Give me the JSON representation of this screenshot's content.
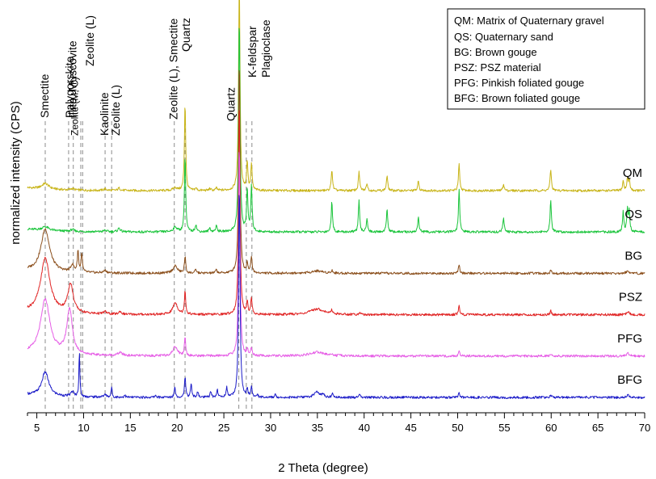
{
  "chart_data": {
    "type": "line",
    "title": "",
    "xlabel": "2 Theta (degree)",
    "ylabel": "normalized intensity (CPS)",
    "xlim": [
      4,
      70
    ],
    "x_ticks": [
      5,
      10,
      15,
      20,
      25,
      30,
      35,
      40,
      45,
      50,
      55,
      60,
      65,
      70
    ],
    "grid": false,
    "legend_position": "top-right",
    "legend": [
      "QM: Matrix of Quaternary gravel",
      "QS: Quaternary sand",
      "BG: Brown gouge",
      "PSZ: PSZ material",
      "PFG: Pinkish foliated gouge",
      "BFG: Brown foliated gouge"
    ],
    "peak_markers": [
      {
        "x": 5.9,
        "label": "Smectite"
      },
      {
        "x": 8.4,
        "label": "Palygorskite"
      },
      {
        "x": 8.9,
        "label": "Illite, Muscovite"
      },
      {
        "x": 9.7,
        "label": "Zeolite (L)"
      },
      {
        "x": 9.9,
        "label": "Zeolite (M, C)"
      },
      {
        "x": 12.3,
        "label": "Kaolinite"
      },
      {
        "x": 13.0,
        "label": "Zeolite (L)"
      },
      {
        "x": 19.7,
        "label": "Zeolite (L), Smectite"
      },
      {
        "x": 20.85,
        "label": "Quartz"
      },
      {
        "x": 26.6,
        "label": "Quartz"
      },
      {
        "x": 27.4,
        "label": "K-feldspar"
      },
      {
        "x": 28.0,
        "label": "Plagioclase"
      }
    ],
    "series": [
      {
        "name": "QM",
        "label": "QM",
        "color": "#c8b418",
        "baseline": 1.0,
        "peaks": [
          [
            5.9,
            0.12,
            0.45
          ],
          [
            8.8,
            0.03,
            0.2
          ],
          [
            12.3,
            0.03,
            0.2
          ],
          [
            13.8,
            0.05,
            0.15
          ],
          [
            19.8,
            0.06,
            0.25
          ],
          [
            20.85,
            1.85,
            0.08
          ],
          [
            22.0,
            0.05,
            0.1
          ],
          [
            23.5,
            0.04,
            0.1
          ],
          [
            24.2,
            0.05,
            0.1
          ],
          [
            26.65,
            4.5,
            0.09
          ],
          [
            27.5,
            0.6,
            0.08
          ],
          [
            27.95,
            0.55,
            0.08
          ],
          [
            36.55,
            0.45,
            0.08
          ],
          [
            39.45,
            0.4,
            0.08
          ],
          [
            40.3,
            0.16,
            0.08
          ],
          [
            42.45,
            0.32,
            0.08
          ],
          [
            45.8,
            0.2,
            0.08
          ],
          [
            50.15,
            0.55,
            0.08
          ],
          [
            54.9,
            0.14,
            0.08
          ],
          [
            59.95,
            0.45,
            0.08
          ],
          [
            67.7,
            0.2,
            0.08
          ],
          [
            68.15,
            0.24,
            0.08
          ],
          [
            68.35,
            0.24,
            0.08
          ]
        ]
      },
      {
        "name": "QS",
        "label": "QS",
        "color": "#19c43a",
        "baseline": 0.8,
        "peaks": [
          [
            5.9,
            0.08,
            0.45
          ],
          [
            8.8,
            0.04,
            0.2
          ],
          [
            12.3,
            0.03,
            0.2
          ],
          [
            13.8,
            0.08,
            0.15
          ],
          [
            19.8,
            0.1,
            0.25
          ],
          [
            20.85,
            1.6,
            0.08
          ],
          [
            22.0,
            0.15,
            0.1
          ],
          [
            23.5,
            0.08,
            0.1
          ],
          [
            24.2,
            0.12,
            0.1
          ],
          [
            26.65,
            4.5,
            0.09
          ],
          [
            27.5,
            0.9,
            0.08
          ],
          [
            27.95,
            0.95,
            0.08
          ],
          [
            36.55,
            0.65,
            0.08
          ],
          [
            39.45,
            0.65,
            0.08
          ],
          [
            40.3,
            0.3,
            0.08
          ],
          [
            42.45,
            0.5,
            0.08
          ],
          [
            45.8,
            0.32,
            0.08
          ],
          [
            50.15,
            0.9,
            0.08
          ],
          [
            54.9,
            0.3,
            0.08
          ],
          [
            59.95,
            0.65,
            0.08
          ],
          [
            67.7,
            0.42,
            0.08
          ],
          [
            68.15,
            0.46,
            0.08
          ],
          [
            68.35,
            0.42,
            0.08
          ]
        ]
      },
      {
        "name": "BG",
        "label": "BG",
        "color": "#8b4f1c",
        "baseline": 0.6,
        "peaks": [
          [
            5.9,
            0.9,
            0.55
          ],
          [
            8.8,
            0.15,
            0.2
          ],
          [
            9.4,
            0.45,
            0.08
          ],
          [
            9.8,
            0.4,
            0.08
          ],
          [
            12.3,
            0.05,
            0.2
          ],
          [
            19.8,
            0.15,
            0.3
          ],
          [
            20.85,
            0.35,
            0.08
          ],
          [
            22.0,
            0.07,
            0.1
          ],
          [
            24.2,
            0.07,
            0.1
          ],
          [
            26.65,
            4.5,
            0.09
          ],
          [
            27.5,
            0.22,
            0.08
          ],
          [
            27.95,
            0.35,
            0.08
          ],
          [
            35.0,
            0.05,
            0.8
          ],
          [
            36.55,
            0.06,
            0.08
          ],
          [
            50.15,
            0.18,
            0.08
          ],
          [
            59.95,
            0.07,
            0.08
          ],
          [
            68.2,
            0.06,
            0.15
          ]
        ]
      },
      {
        "name": "PSZ",
        "label": "PSZ",
        "color": "#e02424",
        "baseline": 0.4,
        "peaks": [
          [
            5.9,
            1.15,
            0.6
          ],
          [
            8.6,
            0.6,
            0.35
          ],
          [
            12.3,
            0.05,
            0.2
          ],
          [
            13.9,
            0.06,
            0.15
          ],
          [
            19.8,
            0.25,
            0.3
          ],
          [
            20.85,
            0.5,
            0.08
          ],
          [
            26.65,
            4.5,
            0.09
          ],
          [
            27.5,
            0.28,
            0.08
          ],
          [
            27.95,
            0.35,
            0.08
          ],
          [
            35.0,
            0.12,
            0.9
          ],
          [
            36.55,
            0.08,
            0.08
          ],
          [
            39.5,
            0.05,
            0.08
          ],
          [
            50.15,
            0.2,
            0.08
          ],
          [
            59.95,
            0.08,
            0.08
          ],
          [
            68.2,
            0.07,
            0.15
          ]
        ]
      },
      {
        "name": "PFG",
        "label": "PFG",
        "color": "#e65ee6",
        "baseline": 0.2,
        "peaks": [
          [
            5.9,
            1.15,
            0.6
          ],
          [
            8.5,
            0.95,
            0.35
          ],
          [
            13.9,
            0.06,
            0.3
          ],
          [
            19.8,
            0.2,
            0.3
          ],
          [
            20.85,
            0.4,
            0.08
          ],
          [
            26.65,
            4.5,
            0.09
          ],
          [
            27.5,
            0.15,
            0.08
          ],
          [
            27.95,
            0.18,
            0.08
          ],
          [
            35.0,
            0.08,
            0.9
          ],
          [
            36.55,
            0.04,
            0.08
          ],
          [
            50.15,
            0.1,
            0.08
          ],
          [
            59.95,
            0.04,
            0.08
          ],
          [
            68.2,
            0.06,
            0.15
          ]
        ]
      },
      {
        "name": "BFG",
        "label": "BFG",
        "color": "#1c1cc8",
        "baseline": 0.0,
        "peaks": [
          [
            5.9,
            0.5,
            0.45
          ],
          [
            8.8,
            0.1,
            0.2
          ],
          [
            9.55,
            0.95,
            0.06
          ],
          [
            12.3,
            0.05,
            0.2
          ],
          [
            13.0,
            0.22,
            0.06
          ],
          [
            14.4,
            0.05,
            0.08
          ],
          [
            17.7,
            0.05,
            0.08
          ],
          [
            19.75,
            0.22,
            0.08
          ],
          [
            20.85,
            0.42,
            0.08
          ],
          [
            21.5,
            0.28,
            0.08
          ],
          [
            22.2,
            0.12,
            0.08
          ],
          [
            23.6,
            0.12,
            0.08
          ],
          [
            24.3,
            0.16,
            0.08
          ],
          [
            25.3,
            0.2,
            0.08
          ],
          [
            26.65,
            4.5,
            0.09
          ],
          [
            27.5,
            0.18,
            0.08
          ],
          [
            27.95,
            0.2,
            0.08
          ],
          [
            28.6,
            0.06,
            0.08
          ],
          [
            30.5,
            0.05,
            0.1
          ],
          [
            34.9,
            0.12,
            0.3
          ],
          [
            35.6,
            0.06,
            0.2
          ],
          [
            36.6,
            0.08,
            0.08
          ],
          [
            39.5,
            0.06,
            0.08
          ],
          [
            50.15,
            0.1,
            0.08
          ],
          [
            59.95,
            0.06,
            0.08
          ],
          [
            68.2,
            0.05,
            0.15
          ]
        ]
      }
    ]
  }
}
